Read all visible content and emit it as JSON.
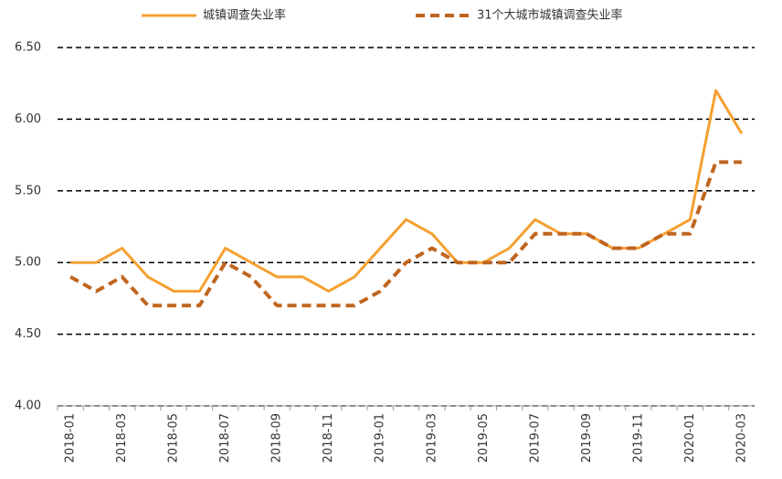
{
  "chart_data": {
    "type": "line",
    "categories": [
      "2018-01",
      null,
      "2018-03",
      null,
      "2018-05",
      null,
      "2018-07",
      null,
      "2018-09",
      null,
      "2018-11",
      null,
      "2019-01",
      null,
      "2019-03",
      null,
      "2019-05",
      null,
      "2019-07",
      null,
      "2019-09",
      null,
      "2019-11",
      null,
      "2020-01",
      null,
      "2020-03"
    ],
    "series": [
      {
        "name": "城镇调查失业率",
        "color": "#f5a030",
        "dashed": false,
        "values": [
          5.0,
          5.0,
          5.1,
          4.9,
          4.8,
          4.8,
          5.1,
          5.0,
          4.9,
          4.9,
          4.8,
          4.9,
          5.1,
          5.3,
          5.2,
          5.0,
          5.0,
          5.1,
          5.3,
          5.2,
          5.2,
          5.1,
          5.1,
          5.2,
          5.3,
          6.2,
          5.9
        ]
      },
      {
        "name": "31个大城市城镇调查失业率",
        "color": "#c0651f",
        "dashed": true,
        "values": [
          4.9,
          4.8,
          4.9,
          4.7,
          4.7,
          4.7,
          5.0,
          4.9,
          4.7,
          4.7,
          4.7,
          4.7,
          4.8,
          5.0,
          5.1,
          5.0,
          5.0,
          5.0,
          5.2,
          5.2,
          5.2,
          5.1,
          5.1,
          5.2,
          5.2,
          5.7,
          5.7
        ]
      }
    ],
    "ylim": [
      4,
      6.5
    ],
    "yticks": [
      {
        "value": 4,
        "label": "4.00"
      },
      {
        "value": 4.5,
        "label": "4.50"
      },
      {
        "value": 5,
        "label": "5.00"
      },
      {
        "value": 5.5,
        "label": "5.50"
      },
      {
        "value": 6,
        "label": "6.00"
      },
      {
        "value": 6.5,
        "label": "6.50"
      }
    ],
    "grid": true,
    "legend": "top"
  }
}
